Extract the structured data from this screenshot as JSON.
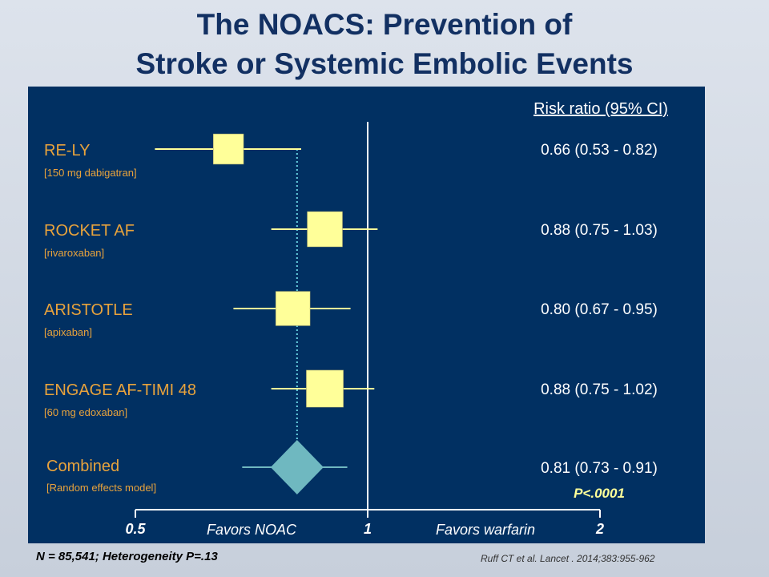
{
  "title_line1": "The NOACS: Prevention of",
  "title_line2": "Stroke or Systemic Embolic Events",
  "chart_data": {
    "type": "forest",
    "column_header": "Risk ratio (95% CI)",
    "scale": "log",
    "xlim": [
      0.5,
      2
    ],
    "ticks": [
      {
        "value": 0.5,
        "label": "0.5"
      },
      {
        "value": 1,
        "label": "1"
      },
      {
        "value": 2,
        "label": "2"
      }
    ],
    "favor_left": "Favors NOAC",
    "favor_right": "Favors warfarin",
    "reference_value": 0.81,
    "studies": [
      {
        "name": "RE-LY",
        "sub": "[150 mg dabigatran]",
        "rr": 0.66,
        "lo": 0.53,
        "hi": 0.82,
        "text": "0.66 (0.53 - 0.82)",
        "weight": 0.72
      },
      {
        "name": "ROCKET AF",
        "sub": "[rivaroxaban]",
        "rr": 0.88,
        "lo": 0.75,
        "hi": 1.03,
        "text": "0.88 (0.75 - 1.03)",
        "weight": 1.0
      },
      {
        "name": "ARISTOTLE",
        "sub": "[apixaban]",
        "rr": 0.8,
        "lo": 0.67,
        "hi": 0.95,
        "text": "0.80 (0.67 - 0.95)",
        "weight": 0.95
      },
      {
        "name": "ENGAGE AF-TIMI 48",
        "sub": "[60 mg edoxaban]",
        "rr": 0.88,
        "lo": 0.75,
        "hi": 1.02,
        "text": "0.88 (0.75 - 1.02)",
        "weight": 1.1
      }
    ],
    "combined": {
      "name": "Combined",
      "sub": "[Random effects model]",
      "rr": 0.81,
      "lo": 0.73,
      "hi": 0.91,
      "text": "0.81 (0.73 - 0.91)",
      "p_value": "P<.0001"
    }
  },
  "footer_left": "N = 85,541; Heterogeneity P=.13",
  "footer_right": "Ruff CT et al. Lancet . 2014;383:955-962",
  "colors": {
    "panel": "#013062",
    "marker": "#ffff99",
    "study_label": "#e8a33c",
    "diamond": "#6fb8c0",
    "dotted": "#66d0e0",
    "title": "#123062"
  }
}
